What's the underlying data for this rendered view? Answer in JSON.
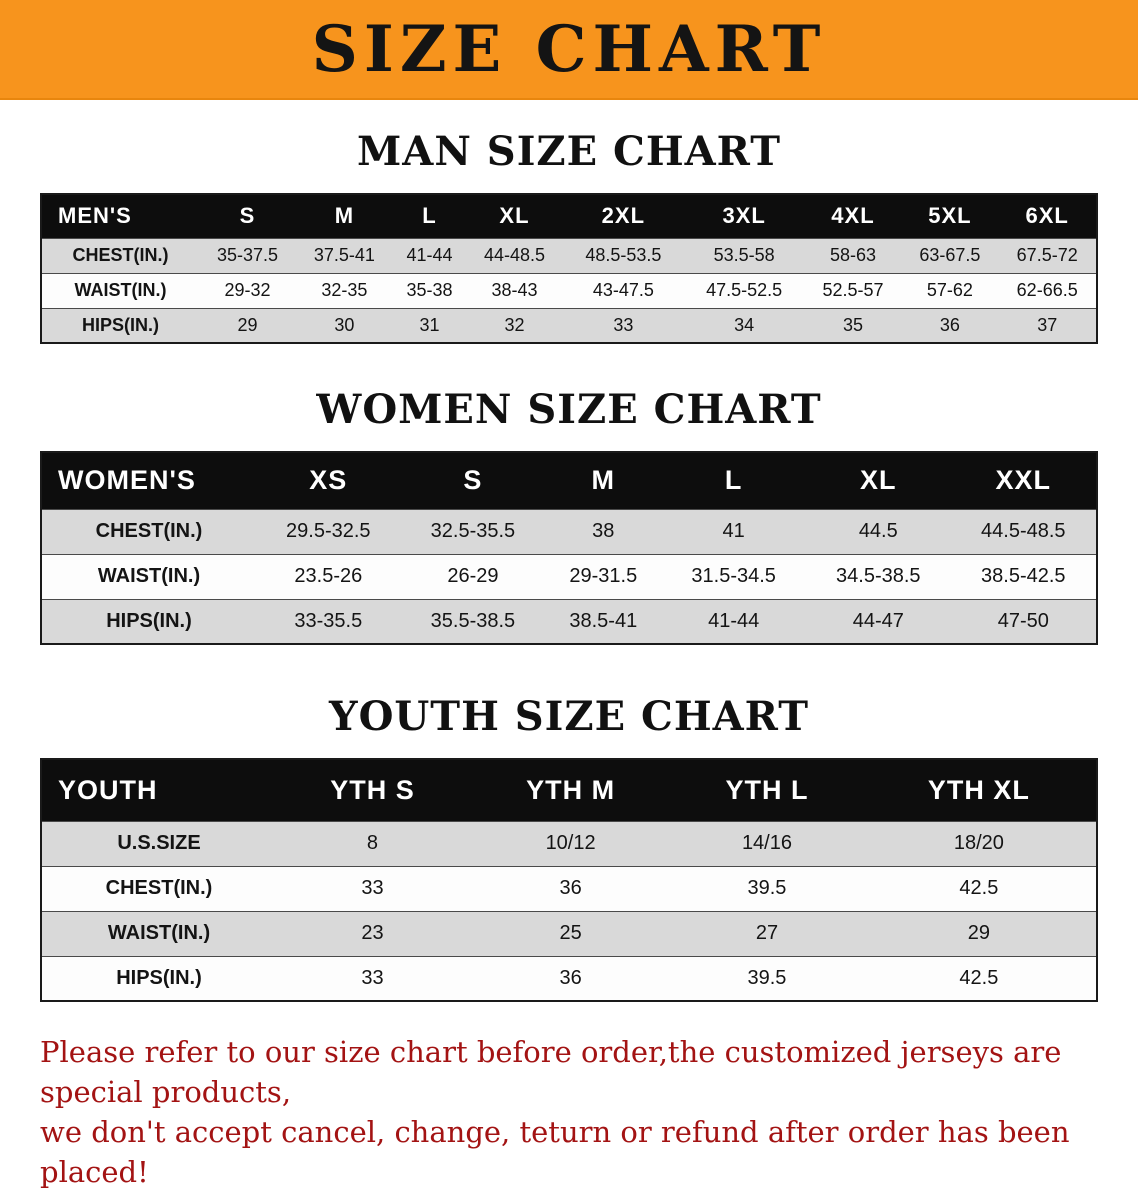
{
  "banner": {
    "title": "SIZE CHART"
  },
  "colors": {
    "banner_bg": "#f7941d",
    "table_header_bg": "#0d0d0d",
    "row_alt_bg": "#d9d9d9",
    "note_text": "#a31313"
  },
  "sections": [
    {
      "heading": "MAN SIZE CHART",
      "table": {
        "header": [
          "MEN'S",
          "S",
          "M",
          "L",
          "XL",
          "2XL",
          "3XL",
          "4XL",
          "5XL",
          "6XL"
        ],
        "rows": [
          [
            "CHEST(IN.)",
            "35-37.5",
            "37.5-41",
            "41-44",
            "44-48.5",
            "48.5-53.5",
            "53.5-58",
            "58-63",
            "63-67.5",
            "67.5-72"
          ],
          [
            "WAIST(IN.)",
            "29-32",
            "32-35",
            "35-38",
            "38-43",
            "43-47.5",
            "47.5-52.5",
            "52.5-57",
            "57-62",
            "62-66.5"
          ],
          [
            "HIPS(IN.)",
            "29",
            "30",
            "31",
            "32",
            "33",
            "34",
            "35",
            "36",
            "37"
          ]
        ]
      }
    },
    {
      "heading": "WOMEN SIZE CHART",
      "table": {
        "header": [
          "WOMEN'S",
          "XS",
          "S",
          "M",
          "L",
          "XL",
          "XXL"
        ],
        "rows": [
          [
            "CHEST(IN.)",
            "29.5-32.5",
            "32.5-35.5",
            "38",
            "41",
            "44.5",
            "44.5-48.5"
          ],
          [
            "WAIST(IN.)",
            "23.5-26",
            "26-29",
            "29-31.5",
            "31.5-34.5",
            "34.5-38.5",
            "38.5-42.5"
          ],
          [
            "HIPS(IN.)",
            "33-35.5",
            "35.5-38.5",
            "38.5-41",
            "41-44",
            "44-47",
            "47-50"
          ]
        ]
      }
    },
    {
      "heading": "YOUTH SIZE CHART",
      "table": {
        "header": [
          "YOUTH",
          "YTH S",
          "YTH M",
          "YTH L",
          "YTH XL"
        ],
        "rows": [
          [
            "U.S.SIZE",
            "8",
            "10/12",
            "14/16",
            "18/20"
          ],
          [
            "CHEST(IN.)",
            "33",
            "36",
            "39.5",
            "42.5"
          ],
          [
            "WAIST(IN.)",
            "23",
            "25",
            "27",
            "29"
          ],
          [
            "HIPS(IN.)",
            "33",
            "36",
            "39.5",
            "42.5"
          ]
        ]
      }
    }
  ],
  "note": {
    "line1": "Please refer to our size chart before order,the customized jerseys are special products,",
    "line2": "we don't accept cancel, change, teturn or refund after order has been placed!"
  }
}
